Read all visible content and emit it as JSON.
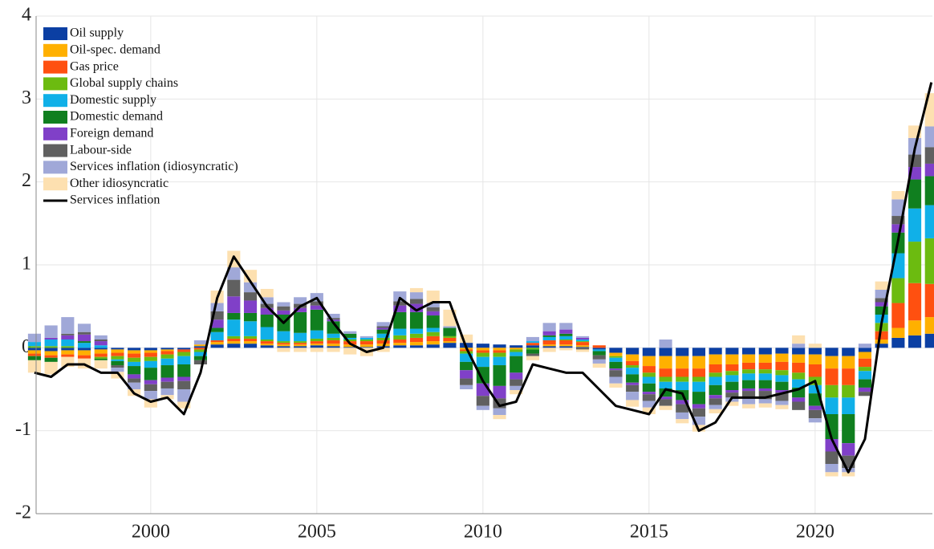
{
  "chart_data": {
    "type": "bar",
    "stacked": true,
    "grid": true,
    "legend": "upper-left",
    "x": [
      1996.5,
      1997,
      1997.5,
      1998,
      1998.5,
      1999,
      1999.5,
      2000,
      2000.5,
      2001,
      2001.5,
      2002,
      2002.5,
      2003,
      2003.5,
      2004,
      2004.5,
      2005,
      2005.5,
      2006,
      2006.5,
      2007,
      2007.5,
      2008,
      2008.5,
      2009,
      2009.5,
      2010,
      2010.5,
      2011,
      2011.5,
      2012,
      2012.5,
      2013,
      2013.5,
      2014,
      2014.5,
      2015,
      2015.5,
      2016,
      2016.5,
      2017,
      2017.5,
      2018,
      2018.5,
      2019,
      2019.5,
      2020,
      2020.5,
      2021,
      2021.5,
      2022,
      2022.5,
      2023,
      2023.5
    ],
    "xlim": [
      1996.55,
      2023.53
    ],
    "xticks": [
      2000,
      2005,
      2010,
      2015,
      2020
    ],
    "ylim": [
      -2,
      4
    ],
    "yticks": [
      -2,
      -1,
      0,
      1,
      2,
      3,
      4
    ],
    "series": [
      {
        "name": "Oil supply",
        "color": "#0b3fa3",
        "values": [
          -0.03,
          -0.04,
          -0.03,
          -0.03,
          -0.02,
          -0.02,
          -0.03,
          -0.03,
          -0.02,
          -0.02,
          0.02,
          0.04,
          0.05,
          0.05,
          0.03,
          0.02,
          0.02,
          0.03,
          0.02,
          0.01,
          0.01,
          0.02,
          0.03,
          0.03,
          0.04,
          0.06,
          0.06,
          0.05,
          0.04,
          0.03,
          0.03,
          0.02,
          0.02,
          0.01,
          -0.02,
          -0.06,
          -0.08,
          -0.1,
          -0.1,
          -0.1,
          -0.1,
          -0.08,
          -0.08,
          -0.08,
          -0.08,
          -0.07,
          -0.08,
          -0.08,
          -0.1,
          -0.1,
          -0.05,
          0.05,
          0.12,
          0.15,
          0.17
        ]
      },
      {
        "name": "Oil-spec. demand",
        "color": "#ffb000",
        "values": [
          -0.04,
          -0.05,
          -0.05,
          -0.06,
          -0.05,
          -0.04,
          -0.04,
          -0.03,
          -0.02,
          0.0,
          0.02,
          0.03,
          0.03,
          0.03,
          0.02,
          0.02,
          0.02,
          0.02,
          0.03,
          0.03,
          0.03,
          0.03,
          0.03,
          0.04,
          0.04,
          0.02,
          -0.02,
          -0.03,
          -0.03,
          -0.02,
          0.0,
          0.02,
          0.02,
          0.02,
          0.0,
          -0.04,
          -0.08,
          -0.12,
          -0.15,
          -0.15,
          -0.15,
          -0.12,
          -0.12,
          -0.1,
          -0.1,
          -0.1,
          -0.1,
          -0.12,
          -0.15,
          -0.15,
          -0.08,
          0.05,
          0.12,
          0.18,
          0.2
        ]
      },
      {
        "name": "Gas price",
        "color": "#ff5010",
        "values": [
          -0.03,
          -0.03,
          -0.03,
          -0.04,
          -0.04,
          -0.04,
          -0.05,
          -0.05,
          -0.04,
          -0.03,
          -0.02,
          0.02,
          0.03,
          0.03,
          0.03,
          0.02,
          0.02,
          0.03,
          0.04,
          0.04,
          0.04,
          0.04,
          0.04,
          0.05,
          0.06,
          0.04,
          -0.02,
          -0.03,
          -0.03,
          0.0,
          0.03,
          0.05,
          0.05,
          0.04,
          0.03,
          0.0,
          -0.05,
          -0.08,
          -0.1,
          -0.1,
          -0.1,
          -0.1,
          -0.08,
          -0.08,
          -0.08,
          -0.1,
          -0.12,
          -0.15,
          -0.2,
          -0.2,
          -0.1,
          0.1,
          0.3,
          0.45,
          0.4
        ]
      },
      {
        "name": "Global supply chains",
        "color": "#6cbb10",
        "values": [
          0.02,
          0.02,
          0.02,
          0.0,
          -0.02,
          -0.04,
          -0.05,
          -0.05,
          -0.05,
          -0.05,
          -0.03,
          0.0,
          0.03,
          0.03,
          0.02,
          0.02,
          0.02,
          0.03,
          0.03,
          0.02,
          0.02,
          0.03,
          0.05,
          0.05,
          0.05,
          0.02,
          -0.03,
          -0.05,
          -0.05,
          -0.03,
          -0.02,
          0.0,
          0.01,
          0.01,
          0.0,
          -0.02,
          -0.03,
          -0.05,
          -0.06,
          -0.06,
          -0.06,
          -0.05,
          -0.05,
          -0.05,
          -0.05,
          -0.06,
          -0.08,
          -0.1,
          -0.15,
          -0.15,
          -0.05,
          0.1,
          0.3,
          0.5,
          0.55
        ]
      },
      {
        "name": "Domestic supply",
        "color": "#10b0e8",
        "values": [
          0.05,
          0.08,
          0.08,
          0.06,
          0.03,
          -0.02,
          -0.05,
          -0.08,
          -0.08,
          -0.1,
          -0.05,
          0.1,
          0.2,
          0.18,
          0.15,
          0.12,
          0.1,
          0.1,
          0.05,
          0.02,
          0.02,
          0.05,
          0.08,
          0.06,
          0.05,
          0.0,
          -0.1,
          -0.12,
          -0.1,
          -0.05,
          0.02,
          0.04,
          0.04,
          0.02,
          -0.02,
          -0.05,
          -0.08,
          -0.08,
          -0.08,
          -0.1,
          -0.12,
          -0.1,
          -0.08,
          -0.08,
          -0.08,
          -0.08,
          -0.1,
          -0.1,
          -0.2,
          -0.2,
          -0.1,
          0.1,
          0.3,
          0.4,
          0.4
        ]
      },
      {
        "name": "Domestic demand",
        "color": "#107f1f",
        "values": [
          -0.05,
          -0.05,
          0.0,
          0.02,
          -0.02,
          -0.05,
          -0.1,
          -0.15,
          -0.15,
          -0.15,
          -0.05,
          0.05,
          0.08,
          0.1,
          0.15,
          0.2,
          0.25,
          0.25,
          0.15,
          0.05,
          0.0,
          0.05,
          0.2,
          0.2,
          0.15,
          0.1,
          -0.1,
          -0.2,
          -0.25,
          -0.2,
          -0.05,
          0.02,
          0.03,
          0.0,
          -0.05,
          -0.08,
          -0.1,
          -0.1,
          -0.1,
          -0.12,
          -0.15,
          -0.12,
          -0.1,
          -0.1,
          -0.1,
          -0.1,
          -0.12,
          -0.15,
          -0.3,
          -0.35,
          -0.1,
          0.1,
          0.25,
          0.35,
          0.35
        ]
      },
      {
        "name": "Foreign demand",
        "color": "#8040c8",
        "values": [
          0.0,
          0.02,
          0.05,
          0.08,
          0.05,
          0.0,
          -0.05,
          -0.05,
          -0.05,
          -0.05,
          0.0,
          0.1,
          0.2,
          0.15,
          0.08,
          0.05,
          0.05,
          0.05,
          0.02,
          0.0,
          0.0,
          0.02,
          0.08,
          0.1,
          0.05,
          0.0,
          -0.1,
          -0.15,
          -0.15,
          -0.08,
          0.0,
          0.05,
          0.05,
          0.02,
          0.0,
          -0.02,
          -0.03,
          -0.03,
          -0.03,
          -0.05,
          -0.05,
          -0.04,
          -0.03,
          -0.03,
          -0.03,
          -0.03,
          -0.05,
          -0.05,
          -0.15,
          -0.15,
          -0.05,
          0.05,
          0.1,
          0.15,
          0.15
        ]
      },
      {
        "name": "Labour-side",
        "color": "#606060",
        "values": [
          0.0,
          0.0,
          0.02,
          0.03,
          0.02,
          -0.03,
          -0.05,
          -0.08,
          -0.08,
          -0.1,
          -0.05,
          0.1,
          0.2,
          0.1,
          0.05,
          0.05,
          0.05,
          0.05,
          0.02,
          0.0,
          0.0,
          0.02,
          0.05,
          0.06,
          0.05,
          0.0,
          -0.08,
          -0.12,
          -0.12,
          -0.08,
          -0.03,
          0.0,
          0.0,
          -0.02,
          -0.05,
          -0.08,
          -0.08,
          -0.08,
          -0.08,
          -0.1,
          -0.1,
          -0.08,
          -0.06,
          -0.08,
          -0.1,
          -0.1,
          -0.1,
          -0.1,
          -0.15,
          -0.15,
          -0.05,
          0.05,
          0.1,
          0.15,
          0.2
        ]
      },
      {
        "name": "Services inflation (idiosyncratic)",
        "color": "#a0a8d8",
        "values": [
          0.1,
          0.15,
          0.2,
          0.1,
          0.05,
          -0.05,
          -0.08,
          -0.1,
          -0.08,
          -0.15,
          0.05,
          0.1,
          0.15,
          0.12,
          0.08,
          0.05,
          0.08,
          0.1,
          0.05,
          0.03,
          0.02,
          0.05,
          0.12,
          0.08,
          0.05,
          0.02,
          -0.05,
          -0.05,
          -0.08,
          -0.05,
          0.05,
          0.1,
          0.08,
          0.02,
          -0.05,
          -0.08,
          -0.1,
          -0.08,
          0.1,
          -0.08,
          -0.1,
          -0.05,
          -0.05,
          -0.08,
          -0.05,
          -0.05,
          0.05,
          -0.05,
          -0.1,
          -0.05,
          0.05,
          0.1,
          0.2,
          0.2,
          0.25
        ]
      },
      {
        "name": "Other idiosyncratic",
        "color": "#fde0b0",
        "values": [
          -0.15,
          -0.15,
          -0.12,
          -0.12,
          -0.1,
          -0.08,
          -0.08,
          -0.1,
          -0.05,
          -0.08,
          0.0,
          0.15,
          0.2,
          0.15,
          0.1,
          -0.05,
          -0.05,
          -0.05,
          -0.05,
          -0.08,
          -0.1,
          -0.05,
          0.0,
          0.05,
          0.15,
          0.2,
          0.1,
          0.0,
          -0.05,
          -0.05,
          -0.05,
          -0.05,
          -0.03,
          -0.03,
          -0.05,
          -0.05,
          -0.08,
          -0.08,
          -0.05,
          -0.05,
          -0.08,
          -0.05,
          -0.05,
          -0.05,
          -0.05,
          -0.05,
          0.1,
          0.05,
          -0.05,
          -0.05,
          0.0,
          0.1,
          0.1,
          0.15,
          0.4
        ]
      }
    ],
    "line": {
      "name": "Services inflation",
      "color": "#000000",
      "values": [
        -0.3,
        -0.35,
        -0.2,
        -0.2,
        -0.3,
        -0.3,
        -0.55,
        -0.65,
        -0.6,
        -0.8,
        -0.3,
        0.6,
        1.1,
        0.8,
        0.5,
        0.3,
        0.5,
        0.6,
        0.3,
        0.05,
        -0.05,
        0.0,
        0.6,
        0.45,
        0.55,
        0.55,
        0.0,
        -0.4,
        -0.7,
        -0.65,
        -0.2,
        -0.25,
        -0.3,
        -0.3,
        -0.5,
        -0.7,
        -0.75,
        -0.8,
        -0.5,
        -0.55,
        -1.0,
        -0.9,
        -0.6,
        -0.6,
        -0.6,
        -0.55,
        -0.5,
        -0.4,
        -1.1,
        -1.5,
        -1.1,
        0.3,
        1.3,
        2.4,
        3.2
      ]
    }
  }
}
